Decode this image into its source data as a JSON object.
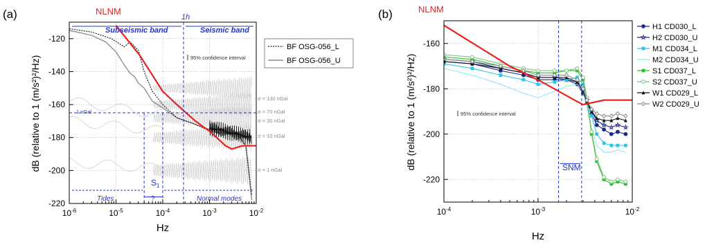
{
  "chart_data": [
    {
      "type": "line",
      "panel_label": "(a)",
      "xlabel": "Hz",
      "ylabel": "dB (relative to 1 (m/s²)²/Hz)",
      "xscale": "log",
      "xlim": [
        1e-06,
        0.01
      ],
      "ylim": [
        -220,
        -110
      ],
      "x_ticks": [
        "10-6",
        "10-5",
        "10-4",
        "10-3",
        "10-2"
      ],
      "y_ticks": [
        "-220",
        "-200",
        "-180",
        "-160",
        "-140",
        "-120"
      ],
      "grid": true,
      "legend_position": "top-right",
      "series": [
        {
          "name": "NLNM",
          "color": "#e8231f",
          "x": [
            1e-05,
            3.2e-05,
            0.0001,
            0.0002,
            0.0005,
            0.0011,
            0.0022,
            0.003,
            0.005,
            0.01
          ],
          "y": [
            -112,
            -130,
            -152,
            -160,
            -170,
            -177,
            -185,
            -187,
            -185,
            -185
          ]
        },
        {
          "name": "BF OSG-056_L",
          "color": "#222222",
          "dash": "dotted",
          "x": [
            1e-06,
            3e-06,
            8e-06,
            1.5e-05,
            2e-05,
            3e-05,
            4e-05,
            6e-05,
            0.0001,
            0.0002,
            0.0005,
            0.001,
            0.002,
            0.004,
            0.006,
            0.008
          ],
          "y": [
            -114,
            -116,
            -120,
            -125,
            -122,
            -127,
            -140,
            -152,
            -160,
            -168,
            -172,
            -176,
            -178,
            -178,
            -185,
            -215
          ]
        },
        {
          "name": "BF OSG-056_U",
          "color": "#888888",
          "x": [
            1e-06,
            3e-06,
            6e-06,
            1e-05,
            1.5e-05,
            2e-05,
            2.5e-05,
            3e-05,
            4e-05,
            6e-05,
            0.0001,
            0.0002,
            0.0005,
            0.001,
            0.002,
            0.004,
            0.006,
            0.008
          ],
          "y": [
            -115,
            -118,
            -122,
            -128,
            -136,
            -141,
            -143,
            -147,
            -150,
            -158,
            -162,
            -168,
            -172,
            -175,
            -177,
            -178,
            -185,
            -218
          ]
        }
      ],
      "annotations": {
        "nlnm_label": "NLNM",
        "subseismic": "Subseismic band",
        "seismic": "Seismic band",
        "one_hour": "1h",
        "confidence": "95% confidence interval",
        "one_ngal_left": "1 nGal",
        "sigma_130": "σ = 130 nGal",
        "sigma_70": "σ = 70 nGal",
        "sigma_30": "σ = 30 nGal",
        "sigma_10": "σ = 10 nGal",
        "sigma_1": "σ = 1 nGal",
        "s1": "S",
        "s1_sub": "1",
        "question": "?",
        "tides": "Tides",
        "normal_modes": "Normal modes"
      }
    },
    {
      "type": "line",
      "panel_label": "(b)",
      "xlabel": "Hz",
      "ylabel": "dB (relative to 1 (m/s²)²/Hz)",
      "xscale": "log",
      "xlim": [
        0.0001,
        0.01
      ],
      "ylim": [
        -230,
        -150
      ],
      "x_ticks": [
        "10-4",
        "10-3",
        "10-2"
      ],
      "y_ticks": [
        "-220",
        "-200",
        "-180",
        "-160"
      ],
      "grid": true,
      "legend_position": "right",
      "annotations": {
        "nlnm_label": "NLNM",
        "confidence": "95% confidence interval",
        "snm": "SNM"
      },
      "series": [
        {
          "name": "NLNM",
          "color": "#e8231f",
          "x": [
            0.0001,
            0.0005,
            0.0011,
            0.0022,
            0.003,
            0.005,
            0.01
          ],
          "y": [
            -152,
            -170,
            -177,
            -184,
            -187,
            -185,
            -185
          ]
        },
        {
          "name": "H1 CD030_L",
          "color": "#1d2a8a",
          "marker": "circle-filled",
          "x": [
            0.0001,
            0.0002,
            0.0004,
            0.0007,
            0.001,
            0.0015,
            0.002,
            0.0026,
            0.003,
            0.0033,
            0.0037,
            0.0042,
            0.005,
            0.006,
            0.007,
            0.0085
          ],
          "y": [
            -168,
            -169,
            -172,
            -174,
            -176,
            -176,
            -176,
            -178,
            -182,
            -186,
            -191,
            -196,
            -198,
            -200,
            -199,
            -200
          ]
        },
        {
          "name": "H2 CD030_U",
          "color": "#1d2a8a",
          "marker": "star-open",
          "x": [
            0.0001,
            0.0002,
            0.0004,
            0.0007,
            0.001,
            0.0015,
            0.002,
            0.0026,
            0.003,
            0.0033,
            0.0037,
            0.0042,
            0.005,
            0.006,
            0.007,
            0.0085
          ],
          "y": [
            -167,
            -168,
            -171,
            -173,
            -175,
            -175,
            -176,
            -177,
            -181,
            -185,
            -190,
            -194,
            -196,
            -197,
            -196,
            -197
          ]
        },
        {
          "name": "M1 CD034_L",
          "color": "#2fc4e8",
          "marker": "square-filled",
          "x": [
            0.0001,
            0.0002,
            0.0004,
            0.0007,
            0.001,
            0.0015,
            0.002,
            0.0026,
            0.003,
            0.0033,
            0.0037,
            0.0042,
            0.005,
            0.006,
            0.007,
            0.0085
          ],
          "y": [
            -169,
            -171,
            -174,
            -176,
            -178,
            -177,
            -176,
            -175,
            -178,
            -184,
            -192,
            -200,
            -204,
            -205,
            -205,
            -205
          ]
        },
        {
          "name": "M2 CD034_U",
          "color": "#8ae8f5",
          "marker": "none",
          "x": [
            0.0001,
            0.0002,
            0.0004,
            0.0007,
            0.001,
            0.0015,
            0.002,
            0.0026,
            0.003,
            0.0033,
            0.0037,
            0.0042,
            0.005,
            0.006,
            0.007,
            0.0085
          ],
          "y": [
            -171,
            -174,
            -178,
            -182,
            -184,
            -181,
            -179,
            -178,
            -181,
            -188,
            -198,
            -205,
            -208,
            -208,
            -207,
            -208
          ]
        },
        {
          "name": "S1 CD037_L",
          "color": "#22c42a",
          "marker": "square-filled",
          "x": [
            0.0001,
            0.0002,
            0.0004,
            0.0007,
            0.001,
            0.0015,
            0.002,
            0.0026,
            0.003,
            0.0033,
            0.0037,
            0.0042,
            0.005,
            0.006,
            0.007,
            0.0085
          ],
          "y": [
            -166,
            -167,
            -170,
            -172,
            -173,
            -173,
            -172,
            -172,
            -176,
            -185,
            -200,
            -212,
            -220,
            -222,
            -221,
            -222
          ]
        },
        {
          "name": "S2 CD037_U",
          "color": "#7fbf7f",
          "marker": "circle-open",
          "x": [
            0.0001,
            0.0002,
            0.0004,
            0.0007,
            0.001,
            0.0015,
            0.002,
            0.0026,
            0.003,
            0.0033,
            0.0037,
            0.0042,
            0.005,
            0.006,
            0.007,
            0.0085
          ],
          "y": [
            -165,
            -166,
            -169,
            -171,
            -172,
            -172,
            -172,
            -171,
            -175,
            -184,
            -199,
            -211,
            -219,
            -221,
            -220,
            -221
          ]
        },
        {
          "name": "W1 CD029_L",
          "color": "#111111",
          "marker": "triangle-filled",
          "x": [
            0.0001,
            0.0002,
            0.0004,
            0.0007,
            0.001,
            0.0015,
            0.002,
            0.0026,
            0.003,
            0.0033,
            0.0037,
            0.0042,
            0.005,
            0.006,
            0.007,
            0.0085
          ],
          "y": [
            -168,
            -169,
            -171,
            -173,
            -175,
            -175,
            -175,
            -177,
            -181,
            -186,
            -190,
            -193,
            -194,
            -194,
            -193,
            -194
          ]
        },
        {
          "name": "W2 CD029_U",
          "color": "#888888",
          "marker": "diamond-open",
          "x": [
            0.0001,
            0.0002,
            0.0004,
            0.0007,
            0.001,
            0.0015,
            0.002,
            0.0026,
            0.003,
            0.0033,
            0.0037,
            0.0042,
            0.005,
            0.006,
            0.007,
            0.0085
          ],
          "y": [
            -167,
            -168,
            -170,
            -172,
            -174,
            -174,
            -174,
            -176,
            -180,
            -185,
            -189,
            -191,
            -192,
            -192,
            -191,
            -192
          ]
        }
      ]
    }
  ]
}
